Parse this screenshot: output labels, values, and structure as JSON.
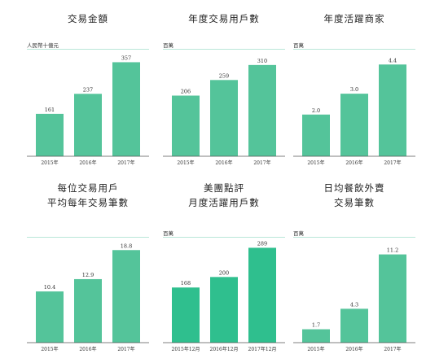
{
  "accent_color": "#54c49a",
  "accent_color_dark": "#2fbf8e",
  "chart_data": [
    {
      "type": "bar",
      "title_lines": [
        "交易金額"
      ],
      "unit": "人民幣十億元",
      "categories": [
        "2015年",
        "2016年",
        "2017年"
      ],
      "values": [
        161,
        237,
        357
      ],
      "value_labels": [
        "161",
        "237",
        "357"
      ],
      "ylim": [
        0,
        380
      ]
    },
    {
      "type": "bar",
      "title_lines": [
        "年度交易用戶數"
      ],
      "unit": "百萬",
      "categories": [
        "2015年",
        "2016年",
        "2017年"
      ],
      "values": [
        206,
        259,
        310
      ],
      "value_labels": [
        "206",
        "259",
        "310"
      ],
      "ylim": [
        0,
        340
      ]
    },
    {
      "type": "bar",
      "title_lines": [
        "年度活躍商家"
      ],
      "unit": "百萬",
      "categories": [
        "2015年",
        "2016年",
        "2017年"
      ],
      "values": [
        2.0,
        3.0,
        4.4
      ],
      "value_labels": [
        "2.0",
        "3.0",
        "4.4"
      ],
      "ylim": [
        0,
        4.8
      ]
    },
    {
      "type": "bar",
      "title_lines": [
        "每位交易用戶",
        "平均每年交易筆數"
      ],
      "unit": "",
      "categories": [
        "2015年",
        "2016年",
        "2017年"
      ],
      "values": [
        10.4,
        12.9,
        18.8
      ],
      "value_labels": [
        "10.4",
        "12.9",
        "18.8"
      ],
      "ylim": [
        0,
        20
      ]
    },
    {
      "type": "bar",
      "title_lines": [
        "美團點評",
        "月度活躍用戶數"
      ],
      "unit": "百萬",
      "categories": [
        "2015年12月",
        "2016年12月",
        "2017年12月"
      ],
      "values": [
        168,
        200,
        289
      ],
      "value_labels": [
        "168",
        "200",
        "289"
      ],
      "ylim": [
        0,
        300
      ]
    },
    {
      "type": "bar",
      "title_lines": [
        "日均餐飲外賣",
        "交易筆數"
      ],
      "unit": "百萬",
      "categories": [
        "2015年",
        "2016年",
        "2017年"
      ],
      "values": [
        1.7,
        4.3,
        11.2
      ],
      "value_labels": [
        "1.7",
        "4.3",
        "11.2"
      ],
      "ylim": [
        0,
        12.5
      ]
    }
  ]
}
